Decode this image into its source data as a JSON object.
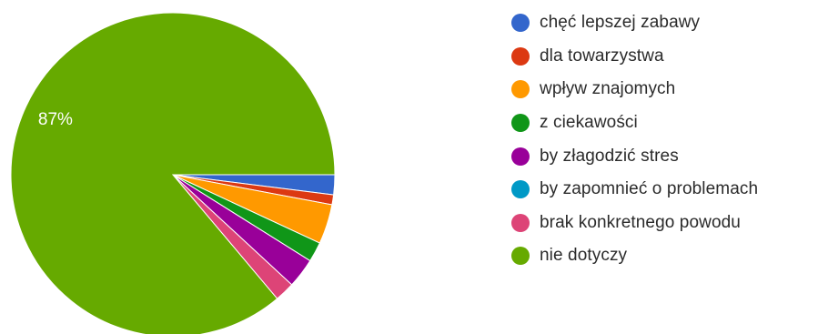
{
  "chart_data": {
    "type": "pie",
    "start_angle_deg": 90,
    "direction": "clockwise",
    "slices": [
      {
        "label": "chęć lepszej zabawy",
        "value": 2,
        "color": "#3366cc",
        "data_label": ""
      },
      {
        "label": "dla towarzystwa",
        "value": 1,
        "color": "#dc3912",
        "data_label": ""
      },
      {
        "label": "wpływ znajomych",
        "value": 4,
        "color": "#ff9900",
        "data_label": ""
      },
      {
        "label": "z ciekawości",
        "value": 2,
        "color": "#109618",
        "data_label": ""
      },
      {
        "label": "by złagodzić stres",
        "value": 3,
        "color": "#990099",
        "data_label": ""
      },
      {
        "label": "by zapomnieć o problemach",
        "value": 0,
        "color": "#0099c6",
        "data_label": ""
      },
      {
        "label": "brak konkretnego powodu",
        "value": 2,
        "color": "#dd4477",
        "data_label": ""
      },
      {
        "label": "nie dotyczy",
        "value": 87,
        "color": "#66aa00",
        "data_label": "87%"
      }
    ],
    "legend": "right"
  }
}
